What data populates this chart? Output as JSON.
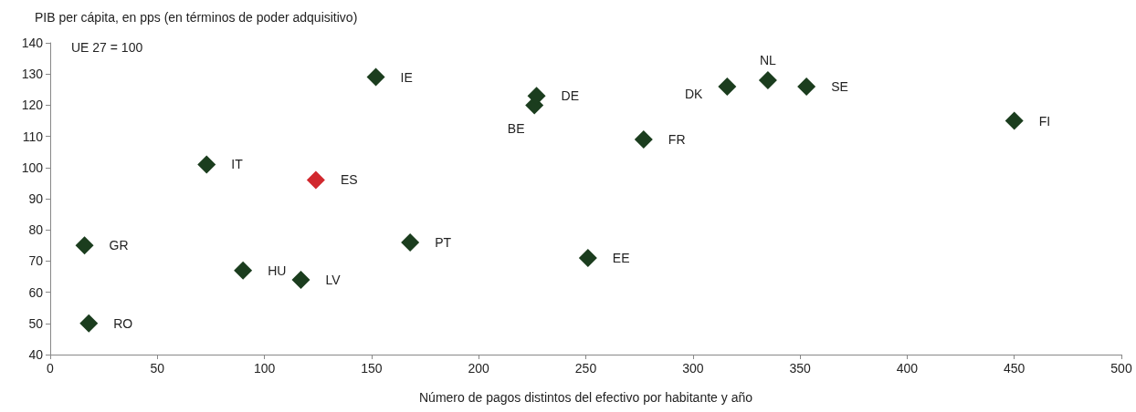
{
  "chart_data": {
    "type": "scatter",
    "ylabel": "PIB per cápita, en pps (en términos de poder adquisitivo)",
    "xlabel": "Número de pagos distintos del efectivo por habitante y año",
    "annotations": [
      "UE 27 = 100"
    ],
    "x": [
      16,
      18,
      73,
      90,
      124,
      117,
      152,
      168,
      226,
      227,
      251,
      277,
      316,
      335,
      353,
      450
    ],
    "values": [
      75,
      50,
      101,
      67,
      96,
      64,
      129,
      76,
      120,
      123,
      71,
      109,
      126,
      128,
      126,
      115
    ],
    "value_labels": [
      "GR",
      "RO",
      "IT",
      "HU",
      "ES",
      "LV",
      "IE",
      "PT",
      "BE",
      "DE",
      "EE",
      "FR",
      "DK",
      "NL",
      "SE",
      "FI"
    ],
    "colors": [
      "#1b3d1e",
      "#1b3d1e",
      "#1b3d1e",
      "#1b3d1e",
      "#d1282e",
      "#1b3d1e",
      "#1b3d1e",
      "#1b3d1e",
      "#1b3d1e",
      "#1b3d1e",
      "#1b3d1e",
      "#1b3d1e",
      "#1b3d1e",
      "#1b3d1e",
      "#1b3d1e",
      "#1b3d1e"
    ],
    "marker": "diamond",
    "xlim": [
      0,
      500
    ],
    "xticks": [
      0,
      50,
      100,
      150,
      200,
      250,
      300,
      350,
      400,
      450,
      500
    ],
    "ylim": [
      40,
      140
    ],
    "yticks": [
      40,
      50,
      60,
      70,
      80,
      90,
      100,
      110,
      120,
      130,
      140
    ],
    "grid": false
  }
}
